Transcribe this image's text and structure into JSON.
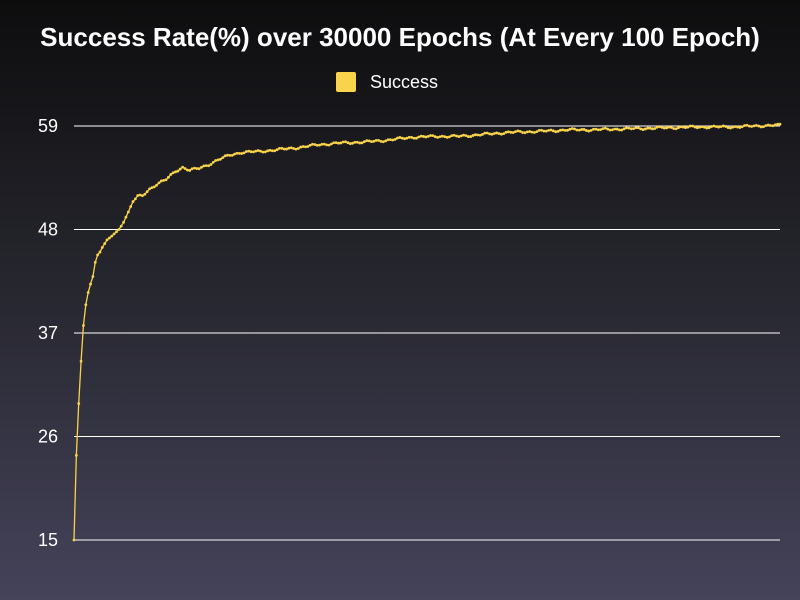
{
  "colors": {
    "series": "#f9d34b",
    "grid": "#ffffff",
    "text": "#ffffff"
  },
  "chart_data": {
    "type": "line",
    "title": "Success Rate(%) over 30000 Epochs (At Every 100 Epoch)",
    "xlabel": "",
    "ylabel": "",
    "legend_position": "top-center",
    "grid": true,
    "ylim": [
      15,
      59
    ],
    "yticks": [
      15,
      26,
      37,
      48,
      59
    ],
    "xlim": [
      100,
      30000
    ],
    "series": [
      {
        "name": "Success",
        "anchors": [
          [
            100,
            15.0
          ],
          [
            200,
            24.0
          ],
          [
            300,
            29.5
          ],
          [
            400,
            34.0
          ],
          [
            500,
            37.8
          ],
          [
            600,
            40.0
          ],
          [
            700,
            41.3
          ],
          [
            800,
            42.2
          ],
          [
            900,
            43.0
          ],
          [
            1000,
            44.5
          ],
          [
            1100,
            45.3
          ],
          [
            1200,
            45.6
          ],
          [
            1300,
            46.1
          ],
          [
            1500,
            46.9
          ],
          [
            1700,
            47.3
          ],
          [
            2000,
            48.0
          ],
          [
            2200,
            48.9
          ],
          [
            2400,
            49.8
          ],
          [
            2600,
            51.0
          ],
          [
            2800,
            51.5
          ],
          [
            3000,
            51.6
          ],
          [
            3300,
            52.3
          ],
          [
            3600,
            52.8
          ],
          [
            4000,
            53.3
          ],
          [
            4400,
            54.2
          ],
          [
            4700,
            54.6
          ],
          [
            5000,
            54.3
          ],
          [
            5400,
            54.5
          ],
          [
            5800,
            54.9
          ],
          [
            6200,
            55.4
          ],
          [
            6700,
            55.9
          ],
          [
            7200,
            56.2
          ],
          [
            8000,
            56.3
          ],
          [
            8800,
            56.5
          ],
          [
            9600,
            56.7
          ],
          [
            10400,
            57.0
          ],
          [
            11400,
            57.2
          ],
          [
            12400,
            57.3
          ],
          [
            13400,
            57.5
          ],
          [
            14400,
            57.8
          ],
          [
            15400,
            57.9
          ],
          [
            16400,
            57.9
          ],
          [
            17400,
            58.1
          ],
          [
            18400,
            58.3
          ],
          [
            19400,
            58.4
          ],
          [
            20400,
            58.5
          ],
          [
            21000,
            58.6
          ],
          [
            22000,
            58.6
          ],
          [
            23500,
            58.7
          ],
          [
            25000,
            58.8
          ],
          [
            26500,
            58.9
          ],
          [
            28000,
            58.9
          ],
          [
            29000,
            59.0
          ],
          [
            30000,
            59.1
          ]
        ]
      }
    ]
  }
}
